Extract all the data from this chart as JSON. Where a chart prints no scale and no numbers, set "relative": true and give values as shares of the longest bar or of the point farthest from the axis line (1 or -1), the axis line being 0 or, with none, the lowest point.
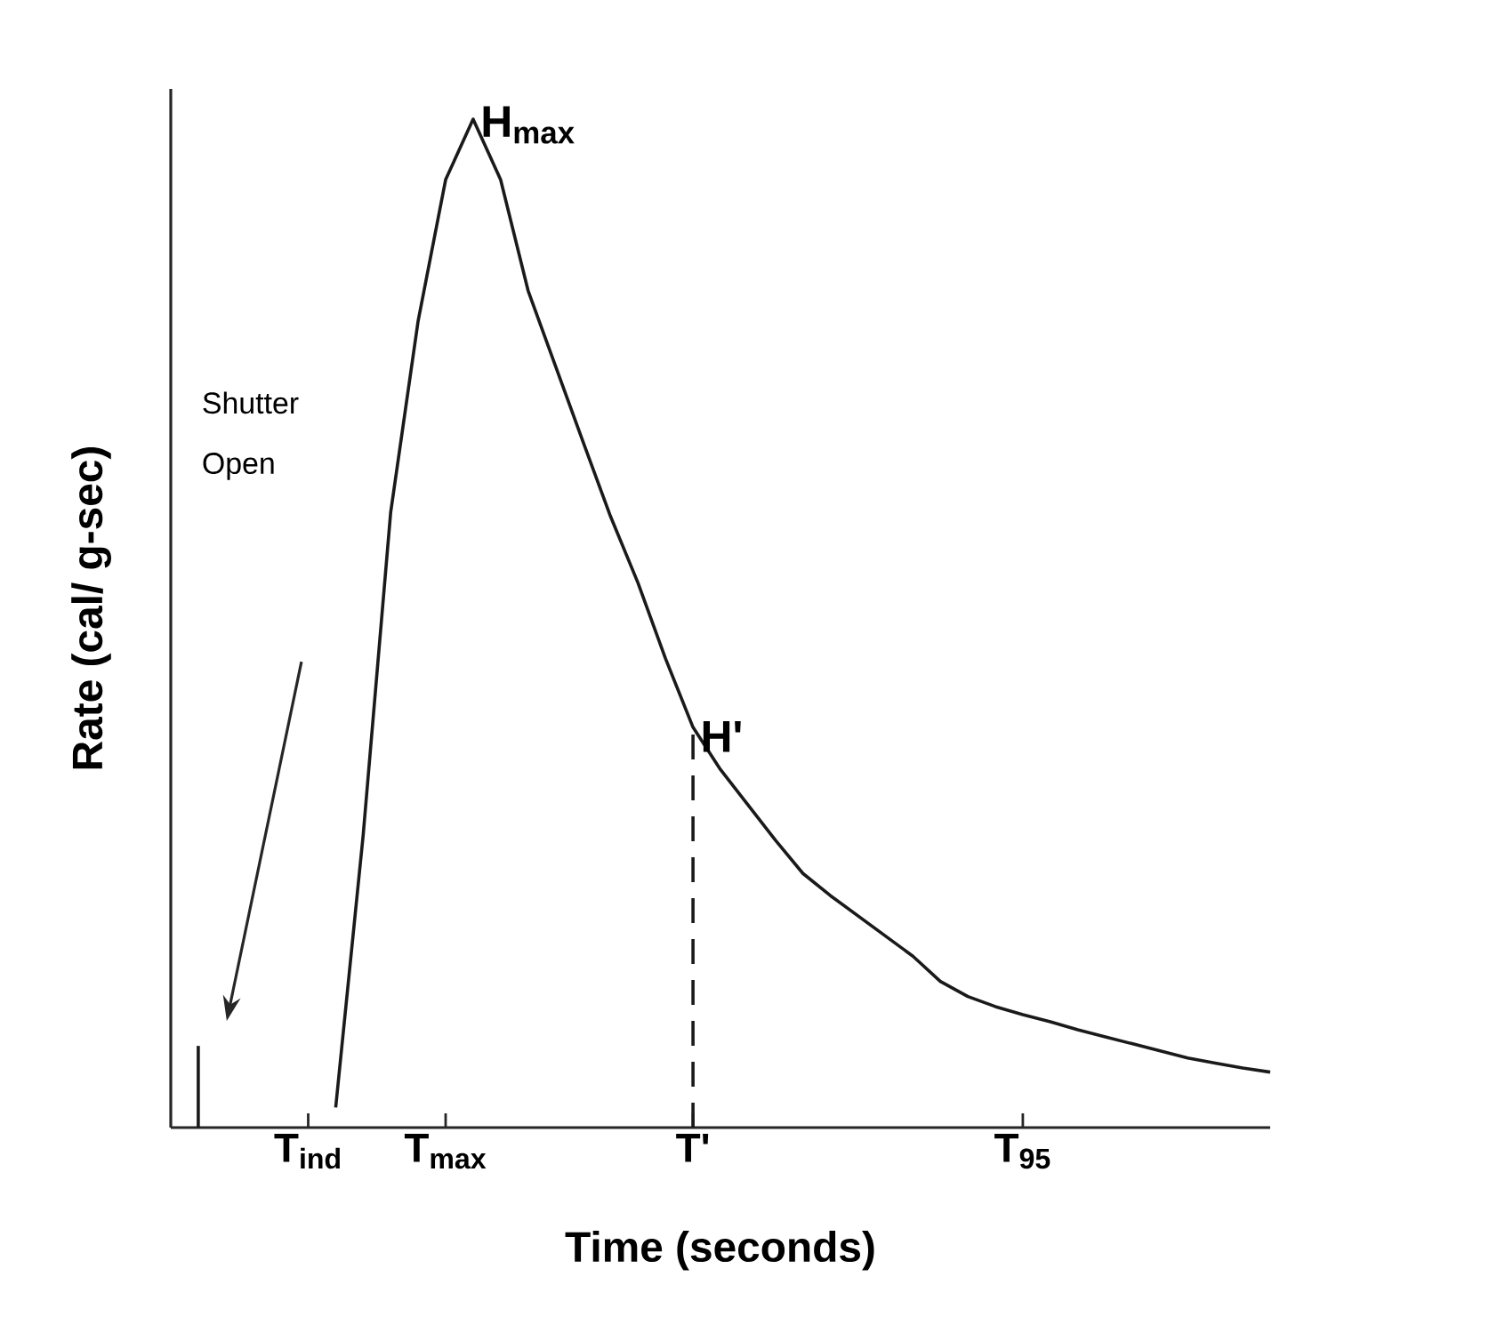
{
  "chart_data": {
    "type": "line",
    "relative": true,
    "xlabel": "Time (seconds)",
    "ylabel": "Rate (cal/ g-sec)",
    "categories": [
      null,
      null,
      null,
      null,
      null,
      "T$_{ind}$",
      null,
      null,
      null,
      null,
      "T$_{max}$",
      null,
      null,
      null,
      null,
      null,
      null,
      null,
      null,
      "T'",
      null,
      null,
      null,
      null,
      null,
      null,
      null,
      null,
      null,
      null,
      null,
      "T$_{95}$",
      null,
      null,
      null,
      null,
      null,
      null,
      null,
      null,
      null
    ],
    "marker": "none",
    "series": [
      {
        "color": "#1a1a1a",
        "values": [
          null,
          null,
          null,
          null,
          null,
          null,
          0.02,
          0.29,
          0.61,
          0.8,
          0.94,
          1.0,
          0.94,
          0.83,
          0.755,
          0.68,
          0.606,
          0.54,
          0.465,
          0.397,
          0.355,
          0.32,
          0.285,
          0.252,
          0.23,
          0.21,
          0.19,
          0.17,
          0.145,
          0.13,
          0.12,
          0.112,
          0.105,
          0.097,
          0.09,
          0.083,
          0.076,
          0.069,
          0.064,
          0.059,
          0.055
        ]
      },
      {
        "type": "bar",
        "color": "#1a1a1a",
        "values": [
          null,
          0.081,
          null,
          null,
          null,
          null,
          null,
          null,
          null,
          null,
          null,
          null,
          null,
          null,
          null,
          null,
          null,
          null,
          null,
          null,
          null,
          null,
          null,
          null,
          null,
          null,
          null,
          null,
          null,
          null,
          null,
          null,
          null,
          null,
          null,
          null,
          null,
          null,
          null,
          null,
          null
        ]
      }
    ],
    "ref_lines": [
      {
        "axis": "x",
        "value": "T'",
        "label": "H'",
        "color": "#1a1a1a",
        "line_style": "dashed"
      }
    ],
    "annotations": [
      "H$_{max}$",
      "Shutter Open"
    ]
  }
}
